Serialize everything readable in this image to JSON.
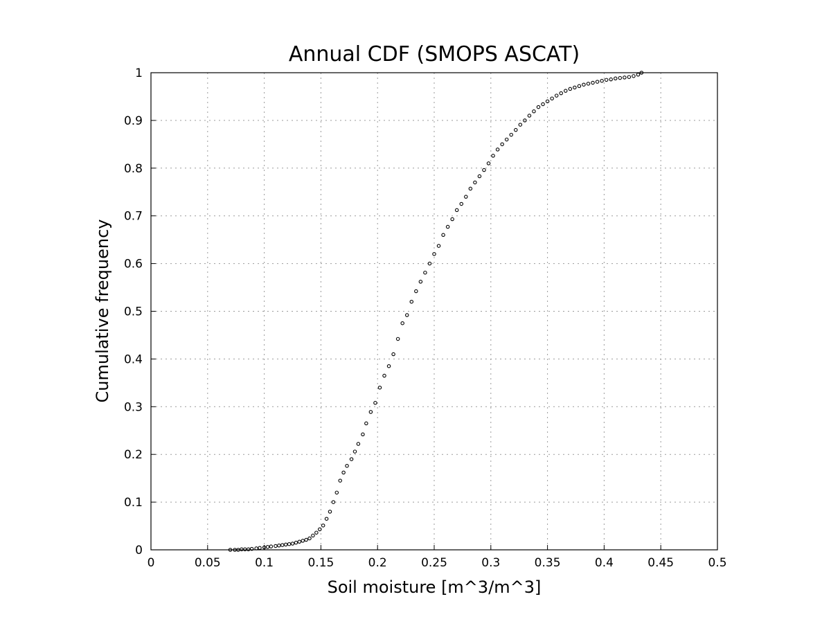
{
  "chart_data": {
    "type": "scatter",
    "title": "Annual CDF (SMOPS ASCAT)",
    "xlabel": "Soil moisture [m^3/m^3]",
    "ylabel": "Cumulative frequency",
    "xlim": [
      0,
      0.5
    ],
    "ylim": [
      0,
      1
    ],
    "x_ticks": [
      0,
      0.05,
      0.1,
      0.15,
      0.2,
      0.25,
      0.3,
      0.35,
      0.4,
      0.45,
      0.5
    ],
    "x_tick_labels": [
      "0",
      "0.05",
      "0.1",
      "0.15",
      "0.2",
      "0.25",
      "0.3",
      "0.35",
      "0.4",
      "0.45",
      "0.5"
    ],
    "y_ticks": [
      0,
      0.1,
      0.2,
      0.3,
      0.4,
      0.5,
      0.6,
      0.7,
      0.8,
      0.9,
      1
    ],
    "y_tick_labels": [
      "0",
      "0.1",
      "0.2",
      "0.3",
      "0.4",
      "0.5",
      "0.6",
      "0.7",
      "0.8",
      "0.9",
      "1"
    ],
    "grid": true,
    "marker": "open-circle",
    "colors": {
      "marker": "#000000",
      "grid": "#999999",
      "frame": "#000000"
    },
    "points": [
      [
        0.07,
        0.0
      ],
      [
        0.074,
        0.0
      ],
      [
        0.077,
        0.0
      ],
      [
        0.08,
        0.001
      ],
      [
        0.083,
        0.001
      ],
      [
        0.086,
        0.001
      ],
      [
        0.089,
        0.002
      ],
      [
        0.093,
        0.003
      ],
      [
        0.096,
        0.004
      ],
      [
        0.1,
        0.005
      ],
      [
        0.103,
        0.006
      ],
      [
        0.106,
        0.007
      ],
      [
        0.11,
        0.008
      ],
      [
        0.113,
        0.009
      ],
      [
        0.116,
        0.01
      ],
      [
        0.119,
        0.011
      ],
      [
        0.122,
        0.012
      ],
      [
        0.125,
        0.013
      ],
      [
        0.128,
        0.015
      ],
      [
        0.131,
        0.017
      ],
      [
        0.134,
        0.019
      ],
      [
        0.137,
        0.021
      ],
      [
        0.14,
        0.024
      ],
      [
        0.143,
        0.03
      ],
      [
        0.146,
        0.036
      ],
      [
        0.149,
        0.043
      ],
      [
        0.152,
        0.051
      ],
      [
        0.155,
        0.065
      ],
      [
        0.158,
        0.08
      ],
      [
        0.161,
        0.1
      ],
      [
        0.164,
        0.12
      ],
      [
        0.167,
        0.145
      ],
      [
        0.17,
        0.162
      ],
      [
        0.173,
        0.176
      ],
      [
        0.177,
        0.19
      ],
      [
        0.18,
        0.206
      ],
      [
        0.183,
        0.222
      ],
      [
        0.187,
        0.242
      ],
      [
        0.19,
        0.265
      ],
      [
        0.194,
        0.289
      ],
      [
        0.198,
        0.308
      ],
      [
        0.202,
        0.34
      ],
      [
        0.206,
        0.365
      ],
      [
        0.21,
        0.385
      ],
      [
        0.214,
        0.41
      ],
      [
        0.218,
        0.442
      ],
      [
        0.222,
        0.475
      ],
      [
        0.226,
        0.492
      ],
      [
        0.23,
        0.52
      ],
      [
        0.234,
        0.542
      ],
      [
        0.238,
        0.562
      ],
      [
        0.242,
        0.581
      ],
      [
        0.246,
        0.6
      ],
      [
        0.25,
        0.62
      ],
      [
        0.254,
        0.637
      ],
      [
        0.258,
        0.66
      ],
      [
        0.262,
        0.677
      ],
      [
        0.266,
        0.693
      ],
      [
        0.27,
        0.712
      ],
      [
        0.274,
        0.725
      ],
      [
        0.278,
        0.74
      ],
      [
        0.282,
        0.757
      ],
      [
        0.286,
        0.77
      ],
      [
        0.29,
        0.783
      ],
      [
        0.294,
        0.796
      ],
      [
        0.298,
        0.81
      ],
      [
        0.302,
        0.826
      ],
      [
        0.306,
        0.839
      ],
      [
        0.31,
        0.85
      ],
      [
        0.314,
        0.86
      ],
      [
        0.318,
        0.87
      ],
      [
        0.322,
        0.88
      ],
      [
        0.326,
        0.891
      ],
      [
        0.33,
        0.9
      ],
      [
        0.334,
        0.91
      ],
      [
        0.338,
        0.919
      ],
      [
        0.342,
        0.928
      ],
      [
        0.346,
        0.934
      ],
      [
        0.35,
        0.94
      ],
      [
        0.354,
        0.946
      ],
      [
        0.358,
        0.952
      ],
      [
        0.362,
        0.957
      ],
      [
        0.366,
        0.962
      ],
      [
        0.37,
        0.966
      ],
      [
        0.374,
        0.969
      ],
      [
        0.378,
        0.972
      ],
      [
        0.382,
        0.975
      ],
      [
        0.386,
        0.977
      ],
      [
        0.39,
        0.979
      ],
      [
        0.394,
        0.981
      ],
      [
        0.398,
        0.983
      ],
      [
        0.402,
        0.985
      ],
      [
        0.406,
        0.986
      ],
      [
        0.41,
        0.988
      ],
      [
        0.414,
        0.989
      ],
      [
        0.418,
        0.99
      ],
      [
        0.422,
        0.991
      ],
      [
        0.426,
        0.993
      ],
      [
        0.43,
        0.996
      ],
      [
        0.433,
        1.0
      ]
    ]
  }
}
